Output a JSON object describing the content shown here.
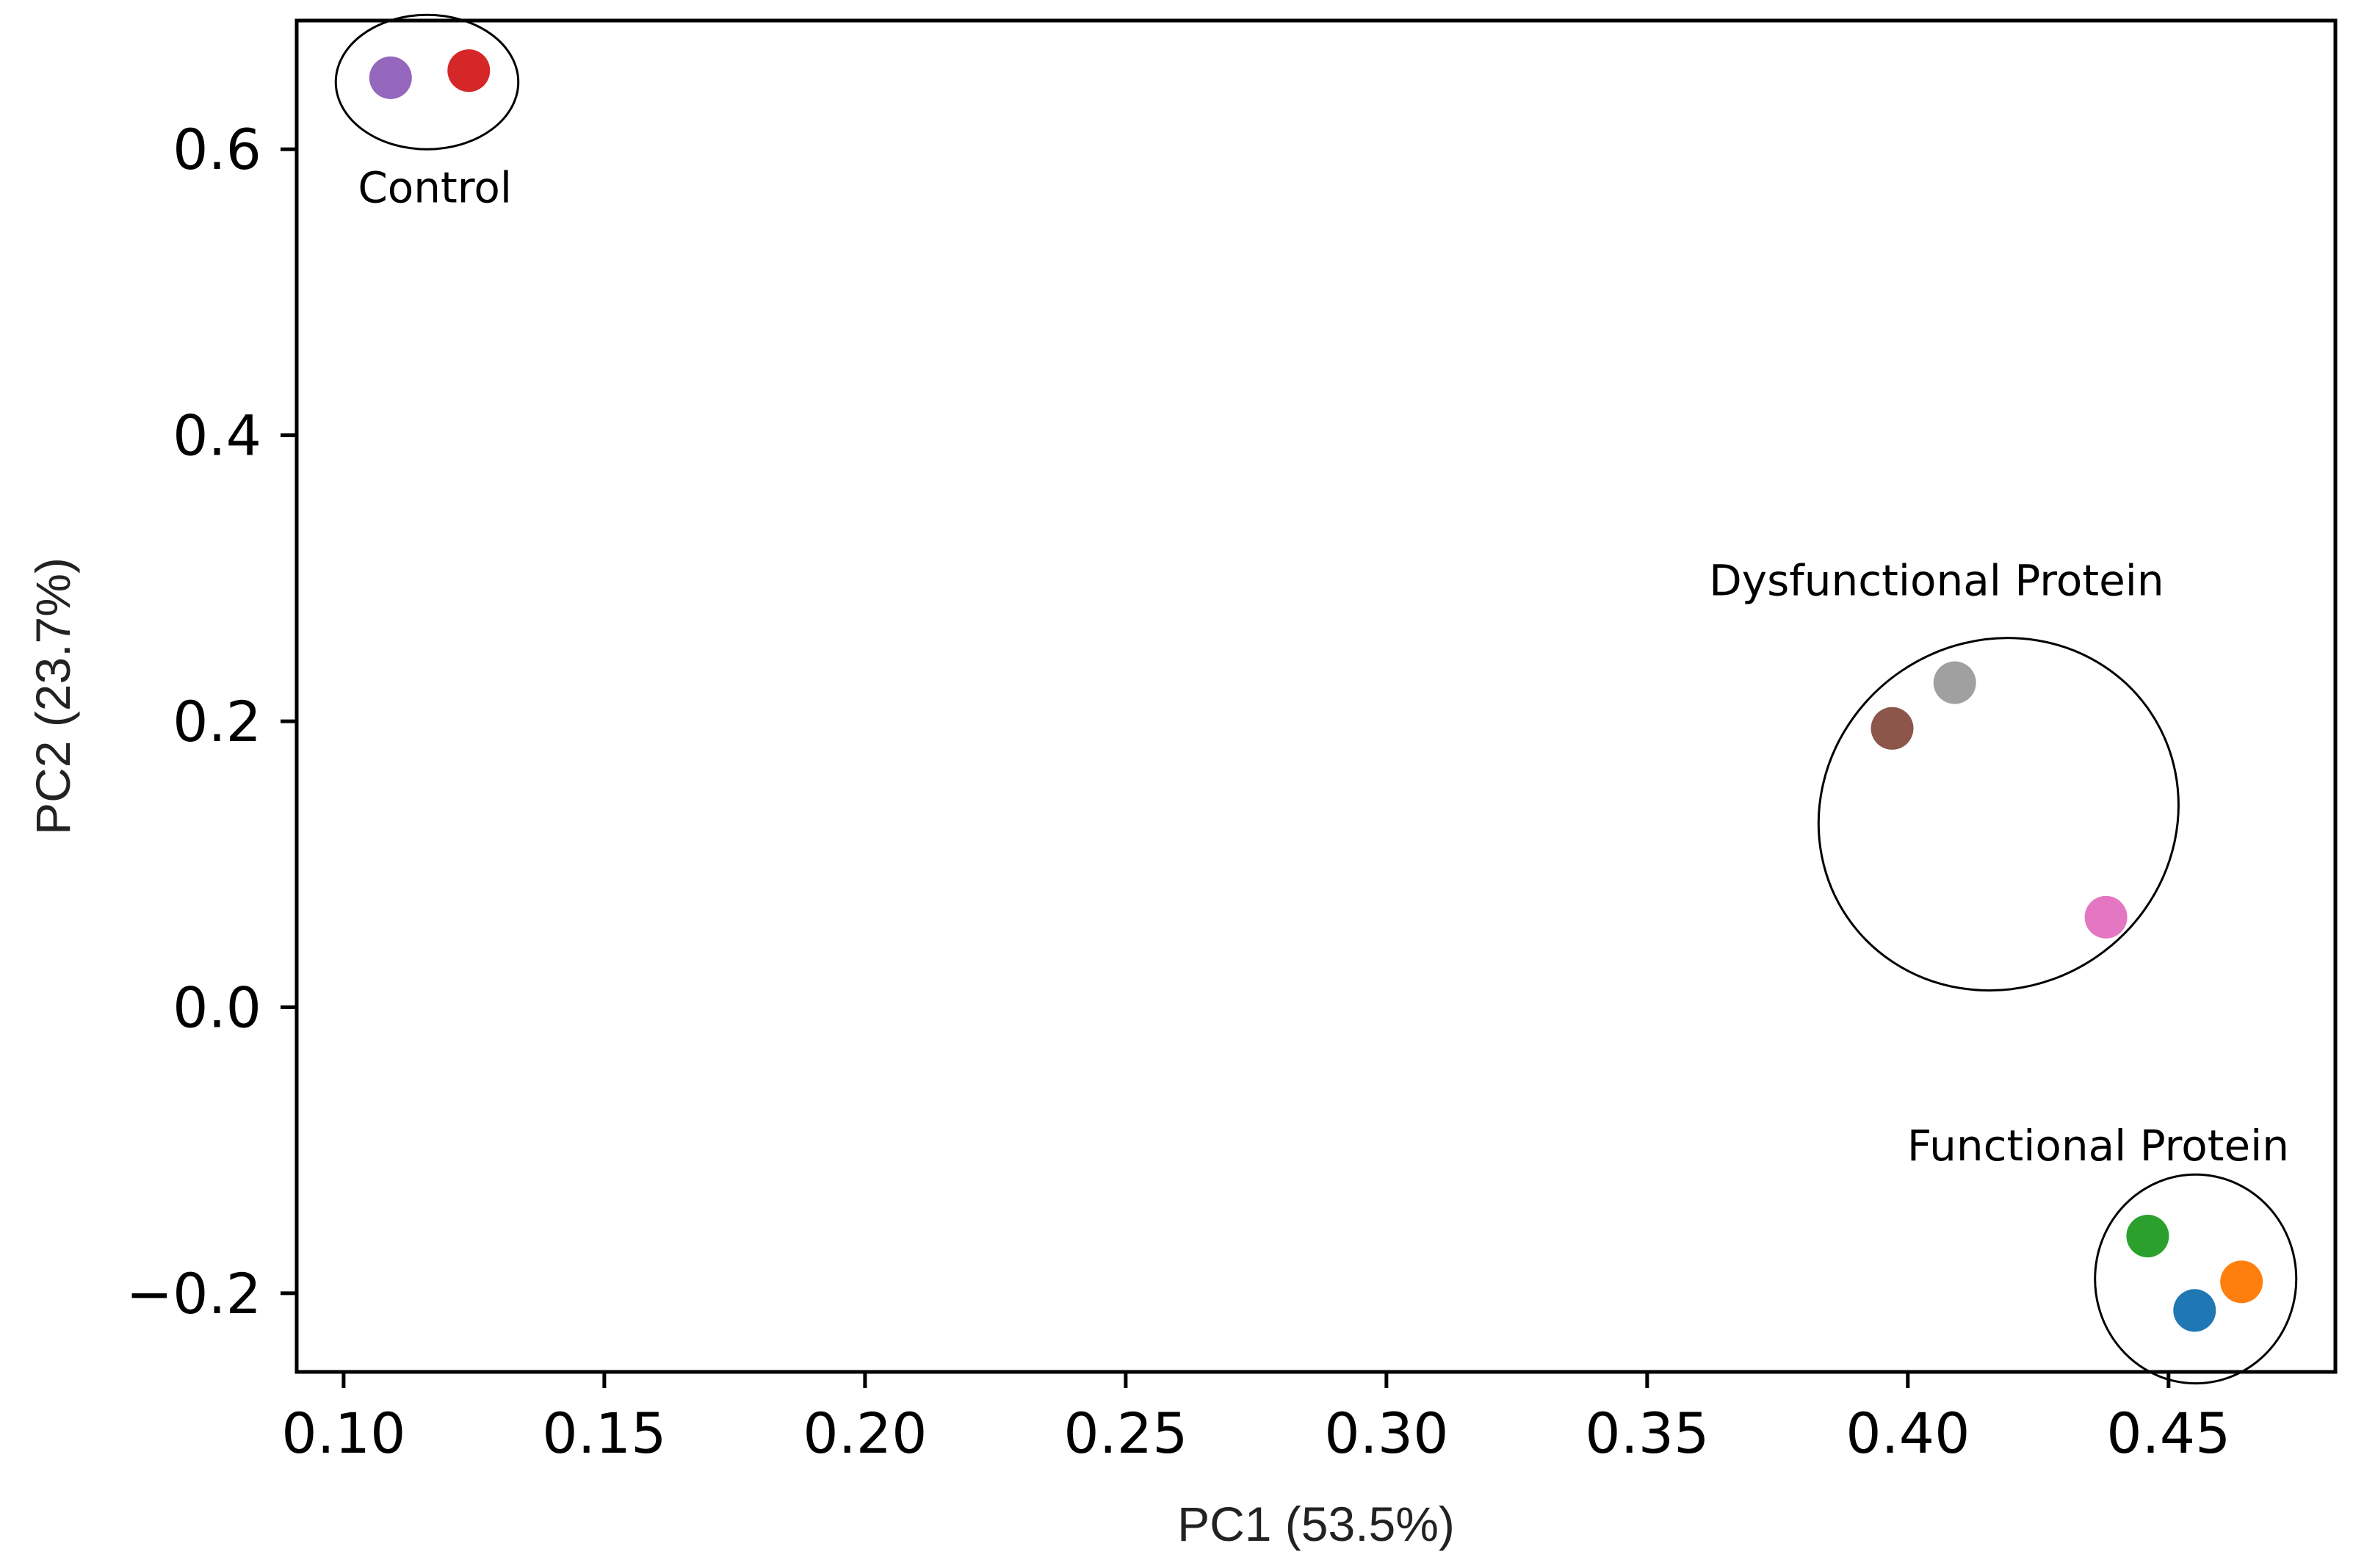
{
  "chart_data": {
    "type": "scatter",
    "title": "",
    "xlabel": "PC1 (53.5%)",
    "ylabel": "PC2 (23.7%)",
    "xlim": [
      0.091,
      0.482
    ],
    "ylim": [
      -0.255,
      0.69
    ],
    "grid": false,
    "xticks": [
      {
        "value": 0.1,
        "label": "0.10"
      },
      {
        "value": 0.15,
        "label": "0.15"
      },
      {
        "value": 0.2,
        "label": "0.20"
      },
      {
        "value": 0.25,
        "label": "0.25"
      },
      {
        "value": 0.3,
        "label": "0.30"
      },
      {
        "value": 0.35,
        "label": "0.35"
      },
      {
        "value": 0.4,
        "label": "0.40"
      },
      {
        "value": 0.45,
        "label": "0.45"
      }
    ],
    "yticks": [
      {
        "value": -0.2,
        "label": "−0.2"
      },
      {
        "value": 0.0,
        "label": "0.0"
      },
      {
        "value": 0.2,
        "label": "0.2"
      },
      {
        "value": 0.4,
        "label": "0.4"
      },
      {
        "value": 0.6,
        "label": "0.6"
      }
    ],
    "points": [
      {
        "x": 0.109,
        "y": 0.65,
        "color": "#9467bd",
        "group": "Control"
      },
      {
        "x": 0.124,
        "y": 0.655,
        "color": "#d62728",
        "group": "Control"
      },
      {
        "x": 0.409,
        "y": 0.227,
        "color": "#a0a0a0",
        "group": "Dysfunctional Protein"
      },
      {
        "x": 0.397,
        "y": 0.195,
        "color": "#8c564b",
        "group": "Dysfunctional Protein"
      },
      {
        "x": 0.438,
        "y": 0.063,
        "color": "#e377c2",
        "group": "Dysfunctional Protein"
      },
      {
        "x": 0.446,
        "y": -0.16,
        "color": "#2ca02c",
        "group": "Functional Protein"
      },
      {
        "x": 0.464,
        "y": -0.192,
        "color": "#ff7f0e",
        "group": "Functional Protein"
      },
      {
        "x": 0.455,
        "y": -0.212,
        "color": "#1f77b4",
        "group": "Functional Protein"
      }
    ],
    "groups": [
      {
        "label": "Control",
        "ellipse": {
          "cx": 0.116,
          "cy": 0.647,
          "rx": 0.0175,
          "ry": 0.047,
          "angle": 0
        },
        "label_pos": {
          "x": 0.1175,
          "y": 0.563
        }
      },
      {
        "label": "Dysfunctional Protein",
        "ellipse": {
          "cx": 0.4174,
          "cy": 0.135,
          "rx": 0.0351,
          "ry": 0.121,
          "angle": -34
        },
        "label_pos": {
          "x": 0.4055,
          "y": 0.288
        }
      },
      {
        "label": "Functional Protein",
        "ellipse": {
          "cx": 0.4552,
          "cy": -0.19,
          "rx": 0.0193,
          "ry": 0.073,
          "angle": 0
        },
        "label_pos": {
          "x": 0.4365,
          "y": -0.107
        }
      }
    ]
  }
}
